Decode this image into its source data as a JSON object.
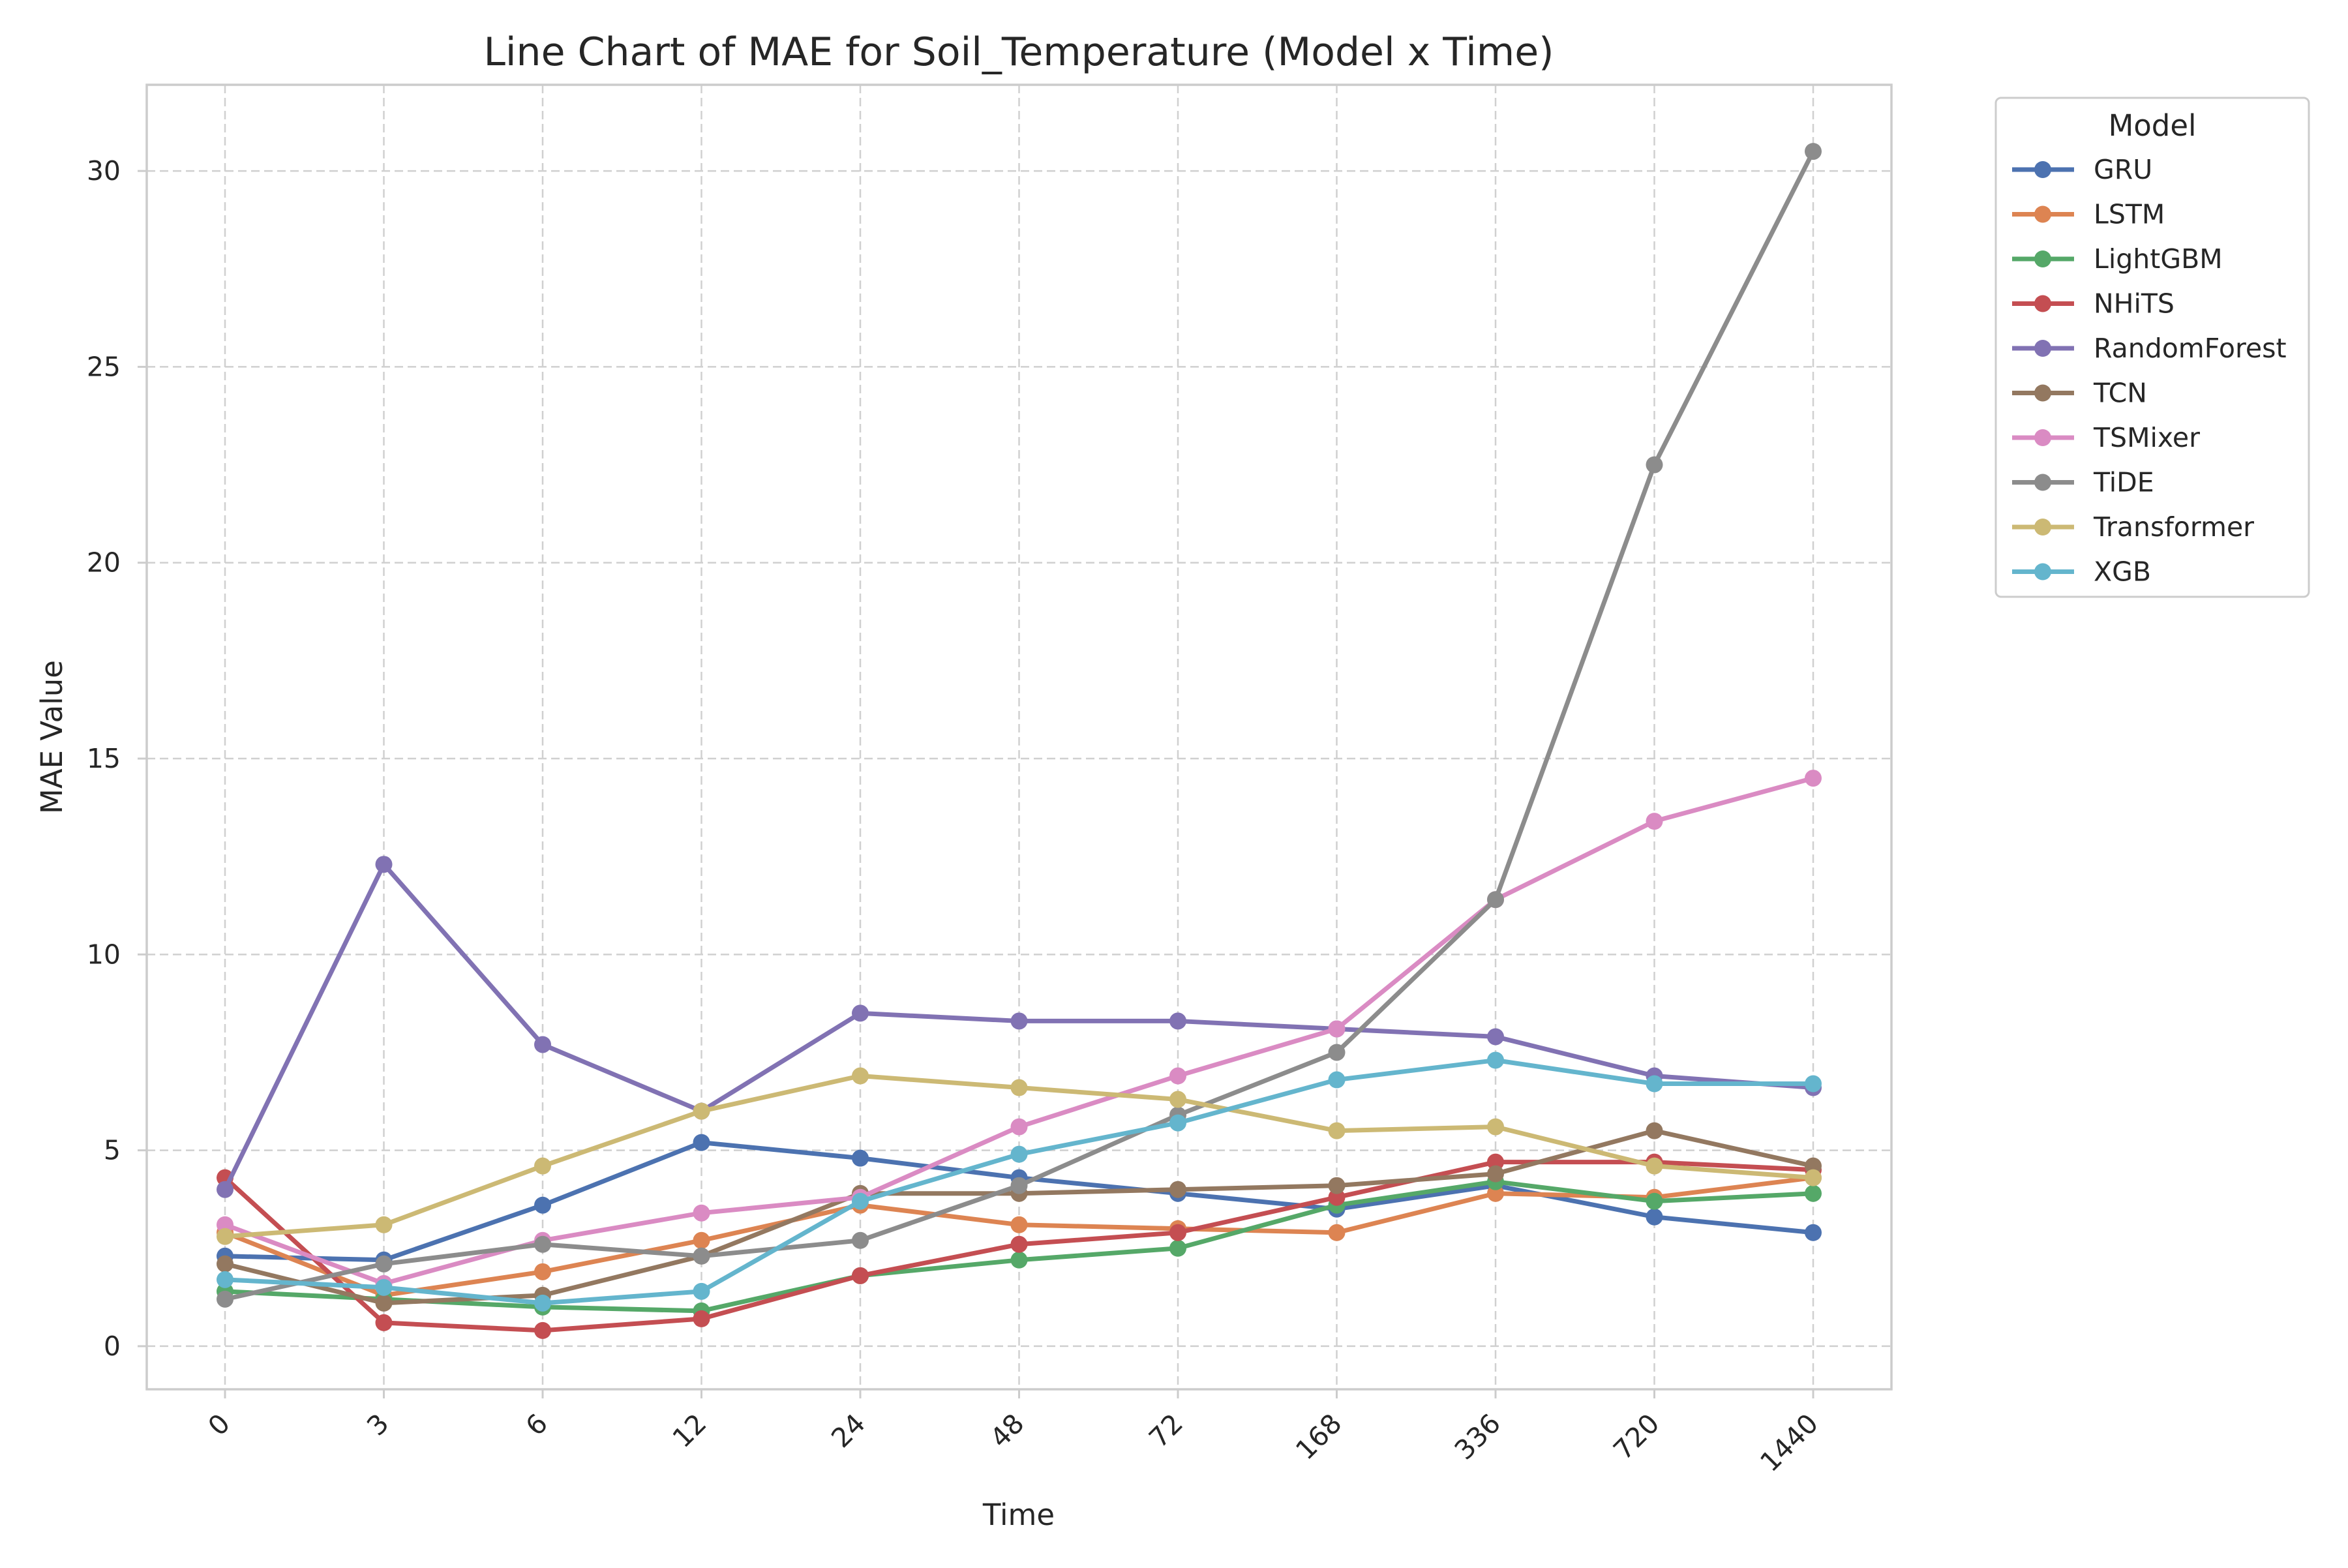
{
  "chart_data": {
    "type": "line",
    "title": "Line Chart of MAE for Soil_Temperature (Model x Time)",
    "xlabel": "Time",
    "ylabel": "MAE Value",
    "categories": [
      "0",
      "3",
      "6",
      "12",
      "24",
      "48",
      "72",
      "168",
      "336",
      "720",
      "1440"
    ],
    "yticks": [
      0,
      5,
      10,
      15,
      20,
      25,
      30
    ],
    "ylim": [
      -1.1,
      32.2
    ],
    "grid": true,
    "legend": {
      "title": "Model",
      "placement": "outside top-right"
    },
    "series": [
      {
        "name": "GRU",
        "color": "#4c72b0",
        "values": [
          2.3,
          2.2,
          3.6,
          5.2,
          4.8,
          4.3,
          3.9,
          3.5,
          4.1,
          3.3,
          2.9
        ]
      },
      {
        "name": "LSTM",
        "color": "#dd8452",
        "values": [
          2.9,
          1.3,
          1.9,
          2.7,
          3.6,
          3.1,
          3.0,
          2.9,
          3.9,
          3.8,
          4.3
        ]
      },
      {
        "name": "LightGBM",
        "color": "#55a868",
        "values": [
          1.4,
          1.2,
          1.0,
          0.9,
          1.8,
          2.2,
          2.5,
          3.6,
          4.2,
          3.7,
          3.9
        ]
      },
      {
        "name": "NHiTS",
        "color": "#c44e52",
        "values": [
          4.3,
          0.6,
          0.4,
          0.7,
          1.8,
          2.6,
          2.9,
          3.8,
          4.7,
          4.7,
          4.5
        ]
      },
      {
        "name": "RandomForest",
        "color": "#8172b3",
        "values": [
          4.0,
          12.3,
          7.7,
          6.0,
          8.5,
          8.3,
          8.3,
          8.1,
          7.9,
          6.9,
          6.6
        ]
      },
      {
        "name": "TCN",
        "color": "#937860",
        "values": [
          2.1,
          1.1,
          1.3,
          2.3,
          3.9,
          3.9,
          4.0,
          4.1,
          4.4,
          5.5,
          4.6
        ]
      },
      {
        "name": "TSMixer",
        "color": "#da8bc3",
        "values": [
          3.1,
          1.6,
          2.7,
          3.4,
          3.8,
          5.6,
          6.9,
          8.1,
          11.4,
          13.4,
          14.5
        ]
      },
      {
        "name": "TiDE",
        "color": "#8c8c8c",
        "values": [
          1.2,
          2.1,
          2.6,
          2.3,
          2.7,
          4.1,
          5.9,
          7.5,
          11.4,
          22.5,
          30.5
        ]
      },
      {
        "name": "Transformer",
        "color": "#ccb974",
        "values": [
          2.8,
          3.1,
          4.6,
          6.0,
          6.9,
          6.6,
          6.3,
          5.5,
          5.6,
          4.6,
          4.3
        ]
      },
      {
        "name": "XGB",
        "color": "#64b5cd",
        "values": [
          1.7,
          1.5,
          1.1,
          1.4,
          3.7,
          4.9,
          5.7,
          6.8,
          7.3,
          6.7,
          6.7
        ]
      }
    ]
  }
}
